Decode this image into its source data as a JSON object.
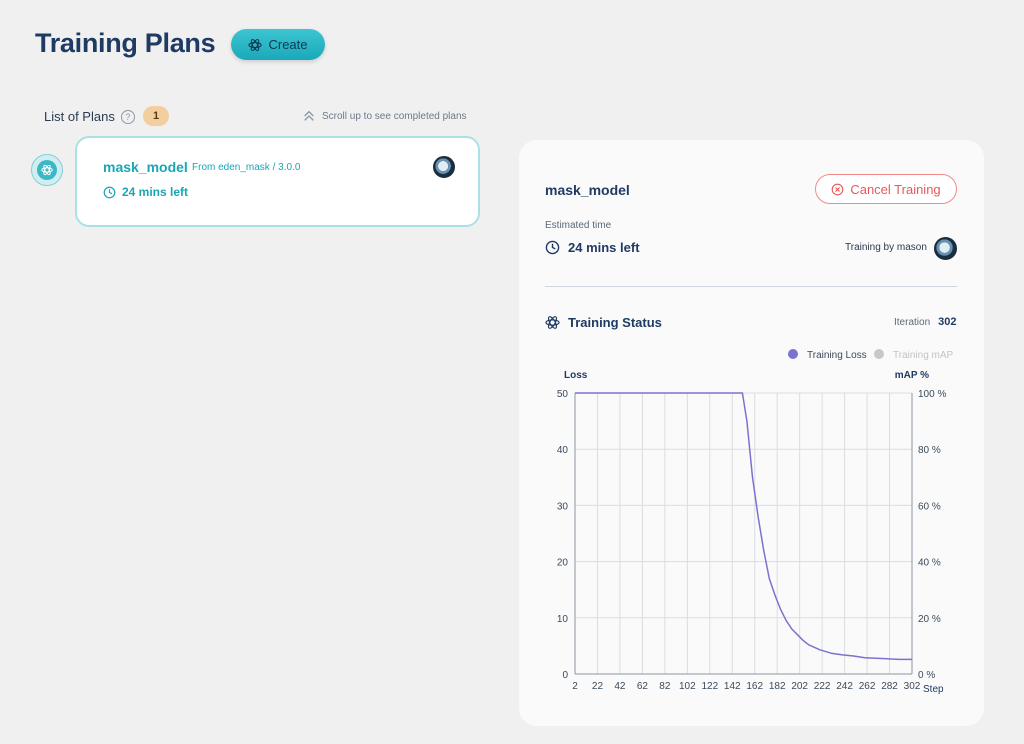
{
  "page": {
    "title": "Training Plans",
    "create_label": "Create"
  },
  "plans_list": {
    "label": "List of Plans",
    "help": "?",
    "count": "1",
    "scroll_hint": "Scroll up to see completed plans",
    "items": [
      {
        "name": "mask_model",
        "source": "From eden_mask / 3.0.0",
        "time_left": "24 mins left",
        "avatar": "user-avatar"
      }
    ]
  },
  "detail": {
    "name": "mask_model",
    "cancel_label": "Cancel Training",
    "estimated_label": "Estimated time",
    "estimated_time": "24 mins left",
    "trained_by": "Training by mason",
    "status_title": "Training Status",
    "iteration_label": "Iteration",
    "iteration_value": "302"
  },
  "colors": {
    "accent": "#1aa6b5",
    "loss_line": "#7a72cf",
    "map_dot": "#c8c8c8",
    "cancel": "#e85a5a"
  },
  "chart_data": {
    "type": "line",
    "left_axis_title": "Loss",
    "right_axis_title": "mAP %",
    "x_axis_title": "Step",
    "xlim": [
      2,
      302
    ],
    "ylim": [
      0,
      50
    ],
    "x_ticks": [
      2,
      22,
      42,
      62,
      82,
      102,
      122,
      142,
      162,
      182,
      202,
      222,
      242,
      262,
      282,
      302
    ],
    "y_ticks": [
      0,
      10,
      20,
      30,
      40,
      50
    ],
    "y2_ticks": [
      "0 %",
      "20 %",
      "40 %",
      "60 %",
      "80 %",
      "100 %"
    ],
    "grid": true,
    "legend_position": "top-right",
    "series": [
      {
        "name": "Training Loss",
        "color": "#7a72cf",
        "x": [
          2,
          22,
          42,
          62,
          82,
          102,
          122,
          142,
          151,
          155,
          160,
          165,
          170,
          175,
          180,
          185,
          190,
          195,
          200,
          205,
          210,
          220,
          230,
          240,
          250,
          260,
          270,
          280,
          290,
          302
        ],
        "y": [
          50,
          50,
          50,
          50,
          50,
          50,
          50,
          50,
          50,
          45,
          35,
          28,
          22,
          17,
          14,
          11.5,
          9.5,
          8,
          7,
          6,
          5.2,
          4.3,
          3.7,
          3.4,
          3.2,
          2.9,
          2.8,
          2.7,
          2.6,
          2.6
        ]
      },
      {
        "name": "Training mAP",
        "color": "#c8c8c8",
        "x": [],
        "y": []
      }
    ]
  }
}
